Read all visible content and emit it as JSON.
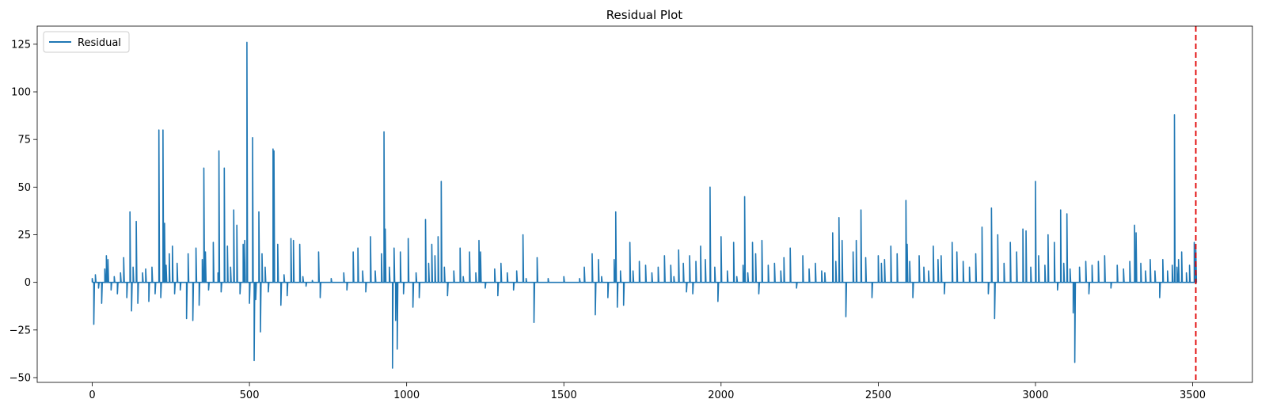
{
  "chart_data": {
    "type": "line",
    "title": "Residual Plot",
    "xlabel": "",
    "ylabel": "",
    "xlim": [
      -175,
      3690
    ],
    "ylim": [
      -52.5,
      134.5
    ],
    "x_ticks": [
      0,
      500,
      1000,
      1500,
      2000,
      2500,
      3000,
      3500
    ],
    "y_ticks": [
      -50,
      -25,
      0,
      25,
      50,
      75,
      100,
      125
    ],
    "legend": {
      "position": "top-left",
      "entries": [
        "Residual"
      ]
    },
    "grid": false,
    "vline": {
      "x": 3510,
      "color": "#e00000",
      "style": "dashed"
    },
    "series": [
      {
        "name": "Residual",
        "color": "#1f77b4",
        "base": 0,
        "n": 3511,
        "spikes": [
          [
            0,
            2
          ],
          [
            5,
            -22
          ],
          [
            10,
            4
          ],
          [
            20,
            -3
          ],
          [
            30,
            -11
          ],
          [
            40,
            7
          ],
          [
            45,
            14
          ],
          [
            50,
            12
          ],
          [
            60,
            -4
          ],
          [
            70,
            3
          ],
          [
            80,
            -6
          ],
          [
            90,
            5
          ],
          [
            100,
            13
          ],
          [
            110,
            -8
          ],
          [
            120,
            37
          ],
          [
            125,
            -15
          ],
          [
            130,
            8
          ],
          [
            140,
            32
          ],
          [
            145,
            -11
          ],
          [
            160,
            5
          ],
          [
            170,
            7
          ],
          [
            180,
            -10
          ],
          [
            190,
            8
          ],
          [
            200,
            -6
          ],
          [
            212,
            80
          ],
          [
            218,
            -8
          ],
          [
            225,
            80
          ],
          [
            230,
            31
          ],
          [
            235,
            9
          ],
          [
            245,
            15
          ],
          [
            255,
            19
          ],
          [
            262,
            -6
          ],
          [
            270,
            10
          ],
          [
            280,
            -4
          ],
          [
            300,
            -19
          ],
          [
            305,
            15
          ],
          [
            320,
            -20
          ],
          [
            330,
            18
          ],
          [
            340,
            -12
          ],
          [
            350,
            12
          ],
          [
            355,
            60
          ],
          [
            360,
            16
          ],
          [
            370,
            -4
          ],
          [
            385,
            21
          ],
          [
            400,
            5
          ],
          [
            403,
            69
          ],
          [
            410,
            -5
          ],
          [
            420,
            60
          ],
          [
            430,
            19
          ],
          [
            440,
            8
          ],
          [
            450,
            38
          ],
          [
            460,
            30
          ],
          [
            470,
            -6
          ],
          [
            480,
            20
          ],
          [
            485,
            22
          ],
          [
            492,
            126
          ],
          [
            500,
            -11
          ],
          [
            510,
            76
          ],
          [
            515,
            -41
          ],
          [
            520,
            -9
          ],
          [
            530,
            37
          ],
          [
            535,
            -26
          ],
          [
            540,
            15
          ],
          [
            550,
            8
          ],
          [
            560,
            -5
          ],
          [
            575,
            70
          ],
          [
            578,
            69
          ],
          [
            590,
            20
          ],
          [
            600,
            -12
          ],
          [
            610,
            4
          ],
          [
            620,
            -7
          ],
          [
            632,
            23
          ],
          [
            640,
            22
          ],
          [
            660,
            20
          ],
          [
            670,
            3
          ],
          [
            680,
            -2
          ],
          [
            700,
            1
          ],
          [
            720,
            16
          ],
          [
            725,
            -8
          ],
          [
            760,
            2
          ],
          [
            800,
            5
          ],
          [
            810,
            -4
          ],
          [
            830,
            16
          ],
          [
            845,
            18
          ],
          [
            860,
            6
          ],
          [
            870,
            -5
          ],
          [
            885,
            24
          ],
          [
            900,
            6
          ],
          [
            920,
            15
          ],
          [
            928,
            79
          ],
          [
            932,
            28
          ],
          [
            945,
            8
          ],
          [
            955,
            -45
          ],
          [
            960,
            18
          ],
          [
            965,
            -20
          ],
          [
            970,
            -35
          ],
          [
            980,
            16
          ],
          [
            990,
            -6
          ],
          [
            1005,
            23
          ],
          [
            1020,
            -13
          ],
          [
            1030,
            5
          ],
          [
            1040,
            -8
          ],
          [
            1060,
            33
          ],
          [
            1070,
            10
          ],
          [
            1080,
            20
          ],
          [
            1090,
            14
          ],
          [
            1100,
            24
          ],
          [
            1110,
            53
          ],
          [
            1120,
            8
          ],
          [
            1130,
            -7
          ],
          [
            1150,
            6
          ],
          [
            1170,
            18
          ],
          [
            1180,
            3
          ],
          [
            1200,
            16
          ],
          [
            1220,
            5
          ],
          [
            1230,
            22
          ],
          [
            1235,
            16
          ],
          [
            1250,
            -3
          ],
          [
            1280,
            7
          ],
          [
            1290,
            -7
          ],
          [
            1300,
            10
          ],
          [
            1320,
            5
          ],
          [
            1340,
            -4
          ],
          [
            1350,
            6
          ],
          [
            1370,
            25
          ],
          [
            1380,
            2
          ],
          [
            1405,
            -21
          ],
          [
            1415,
            13
          ],
          [
            1450,
            2
          ],
          [
            1500,
            3
          ],
          [
            1550,
            2
          ],
          [
            1565,
            8
          ],
          [
            1590,
            15
          ],
          [
            1600,
            -17
          ],
          [
            1610,
            12
          ],
          [
            1620,
            3
          ],
          [
            1640,
            -8
          ],
          [
            1660,
            12
          ],
          [
            1665,
            37
          ],
          [
            1670,
            -13
          ],
          [
            1680,
            6
          ],
          [
            1690,
            -12
          ],
          [
            1710,
            21
          ],
          [
            1720,
            6
          ],
          [
            1740,
            11
          ],
          [
            1760,
            9
          ],
          [
            1780,
            5
          ],
          [
            1800,
            8
          ],
          [
            1820,
            14
          ],
          [
            1840,
            9
          ],
          [
            1850,
            3
          ],
          [
            1865,
            17
          ],
          [
            1880,
            10
          ],
          [
            1890,
            -5
          ],
          [
            1900,
            14
          ],
          [
            1910,
            -6
          ],
          [
            1920,
            11
          ],
          [
            1935,
            19
          ],
          [
            1950,
            12
          ],
          [
            1965,
            50
          ],
          [
            1980,
            8
          ],
          [
            1990,
            -10
          ],
          [
            2000,
            24
          ],
          [
            2020,
            6
          ],
          [
            2040,
            21
          ],
          [
            2050,
            3
          ],
          [
            2070,
            9
          ],
          [
            2075,
            45
          ],
          [
            2085,
            5
          ],
          [
            2100,
            21
          ],
          [
            2110,
            15
          ],
          [
            2120,
            -6
          ],
          [
            2130,
            22
          ],
          [
            2150,
            9
          ],
          [
            2170,
            10
          ],
          [
            2190,
            6
          ],
          [
            2200,
            13
          ],
          [
            2220,
            18
          ],
          [
            2240,
            -3
          ],
          [
            2260,
            14
          ],
          [
            2280,
            7
          ],
          [
            2300,
            10
          ],
          [
            2320,
            6
          ],
          [
            2330,
            5
          ],
          [
            2355,
            26
          ],
          [
            2365,
            11
          ],
          [
            2375,
            34
          ],
          [
            2385,
            22
          ],
          [
            2397,
            -18
          ],
          [
            2420,
            16
          ],
          [
            2430,
            22
          ],
          [
            2445,
            38
          ],
          [
            2460,
            13
          ],
          [
            2480,
            -8
          ],
          [
            2500,
            14
          ],
          [
            2510,
            10
          ],
          [
            2520,
            12
          ],
          [
            2540,
            19
          ],
          [
            2560,
            15
          ],
          [
            2588,
            43
          ],
          [
            2592,
            20
          ],
          [
            2600,
            11
          ],
          [
            2610,
            -8
          ],
          [
            2630,
            14
          ],
          [
            2645,
            8
          ],
          [
            2660,
            6
          ],
          [
            2675,
            19
          ],
          [
            2690,
            12
          ],
          [
            2700,
            14
          ],
          [
            2710,
            -6
          ],
          [
            2735,
            21
          ],
          [
            2750,
            16
          ],
          [
            2770,
            11
          ],
          [
            2790,
            8
          ],
          [
            2810,
            15
          ],
          [
            2830,
            29
          ],
          [
            2850,
            -6
          ],
          [
            2860,
            39
          ],
          [
            2870,
            -19
          ],
          [
            2880,
            25
          ],
          [
            2900,
            10
          ],
          [
            2920,
            21
          ],
          [
            2940,
            16
          ],
          [
            2960,
            28
          ],
          [
            2970,
            27
          ],
          [
            2985,
            8
          ],
          [
            3000,
            53
          ],
          [
            3010,
            14
          ],
          [
            3030,
            9
          ],
          [
            3040,
            25
          ],
          [
            3060,
            21
          ],
          [
            3070,
            -4
          ],
          [
            3080,
            38
          ],
          [
            3090,
            10
          ],
          [
            3100,
            36
          ],
          [
            3110,
            7
          ],
          [
            3120,
            -16
          ],
          [
            3125,
            -42
          ],
          [
            3140,
            8
          ],
          [
            3160,
            11
          ],
          [
            3170,
            -6
          ],
          [
            3180,
            9
          ],
          [
            3200,
            11
          ],
          [
            3220,
            14
          ],
          [
            3240,
            -3
          ],
          [
            3260,
            9
          ],
          [
            3280,
            7
          ],
          [
            3300,
            11
          ],
          [
            3315,
            30
          ],
          [
            3320,
            26
          ],
          [
            3335,
            10
          ],
          [
            3350,
            6
          ],
          [
            3365,
            12
          ],
          [
            3380,
            6
          ],
          [
            3395,
            -8
          ],
          [
            3405,
            12
          ],
          [
            3420,
            6
          ],
          [
            3435,
            9
          ],
          [
            3442,
            88
          ],
          [
            3450,
            8
          ],
          [
            3455,
            12
          ],
          [
            3465,
            16
          ],
          [
            3480,
            5
          ],
          [
            3490,
            9
          ],
          [
            3505,
            21
          ],
          [
            3510,
            17
          ]
        ]
      }
    ]
  }
}
